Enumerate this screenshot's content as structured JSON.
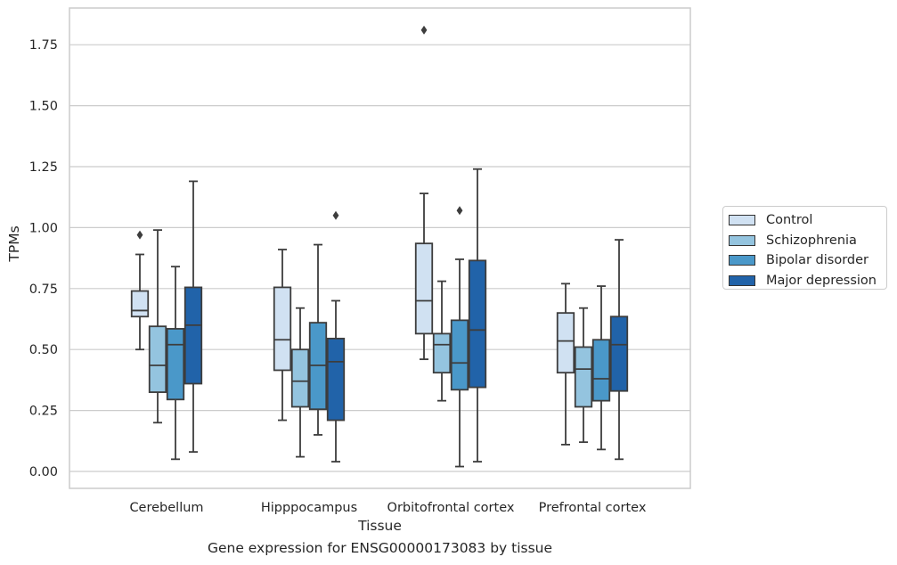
{
  "chart_data": {
    "type": "boxplot",
    "caption": "Gene expression for ENSG00000173083 by tissue",
    "xlabel": "Tissue",
    "ylabel": "TPMs",
    "ylim": [
      -0.07,
      1.92
    ],
    "yticks": [
      "0.00",
      "0.25",
      "0.50",
      "0.75",
      "1.00",
      "1.25",
      "1.50",
      "1.75"
    ],
    "ytick_values": [
      0,
      0.25,
      0.5,
      0.75,
      1.0,
      1.25,
      1.5,
      1.75
    ],
    "grid": true,
    "legend_position": "right",
    "categories": [
      "Cerebellum",
      "Hipppocampus",
      "Orbitofrontal cortex",
      "Prefrontal cortex"
    ],
    "series": [
      {
        "name": "Control",
        "color": "#d0e1f2",
        "boxes": [
          {
            "whislo": 0.5,
            "q1": 0.635,
            "med": 0.66,
            "q3": 0.74,
            "whishi": 0.89,
            "fliers": [
              0.97
            ]
          },
          {
            "whislo": 0.21,
            "q1": 0.415,
            "med": 0.54,
            "q3": 0.755,
            "whishi": 0.91,
            "fliers": []
          },
          {
            "whislo": 0.46,
            "q1": 0.565,
            "med": 0.7,
            "q3": 0.935,
            "whishi": 1.14,
            "fliers": [
              1.81
            ]
          },
          {
            "whislo": 0.11,
            "q1": 0.405,
            "med": 0.535,
            "q3": 0.65,
            "whishi": 0.77,
            "fliers": []
          }
        ]
      },
      {
        "name": "Schizophrenia",
        "color": "#94c4df",
        "boxes": [
          {
            "whislo": 0.2,
            "q1": 0.325,
            "med": 0.435,
            "q3": 0.595,
            "whishi": 0.99,
            "fliers": []
          },
          {
            "whislo": 0.06,
            "q1": 0.265,
            "med": 0.37,
            "q3": 0.5,
            "whishi": 0.67,
            "fliers": []
          },
          {
            "whislo": 0.29,
            "q1": 0.405,
            "med": 0.52,
            "q3": 0.565,
            "whishi": 0.78,
            "fliers": []
          },
          {
            "whislo": 0.12,
            "q1": 0.265,
            "med": 0.42,
            "q3": 0.51,
            "whishi": 0.67,
            "fliers": []
          }
        ]
      },
      {
        "name": "Bipolar disorder",
        "color": "#4a98c9",
        "boxes": [
          {
            "whislo": 0.05,
            "q1": 0.295,
            "med": 0.52,
            "q3": 0.585,
            "whishi": 0.84,
            "fliers": []
          },
          {
            "whislo": 0.15,
            "q1": 0.255,
            "med": 0.435,
            "q3": 0.61,
            "whishi": 0.93,
            "fliers": []
          },
          {
            "whislo": 0.02,
            "q1": 0.335,
            "med": 0.445,
            "q3": 0.62,
            "whishi": 0.87,
            "fliers": [
              1.07
            ]
          },
          {
            "whislo": 0.09,
            "q1": 0.29,
            "med": 0.38,
            "q3": 0.54,
            "whishi": 0.76,
            "fliers": []
          }
        ]
      },
      {
        "name": "Major depression",
        "color": "#2163a9",
        "boxes": [
          {
            "whislo": 0.08,
            "q1": 0.36,
            "med": 0.6,
            "q3": 0.755,
            "whishi": 1.19,
            "fliers": []
          },
          {
            "whislo": 0.04,
            "q1": 0.21,
            "med": 0.45,
            "q3": 0.545,
            "whishi": 0.7,
            "fliers": [
              1.05
            ]
          },
          {
            "whislo": 0.04,
            "q1": 0.345,
            "med": 0.58,
            "q3": 0.865,
            "whishi": 1.24,
            "fliers": []
          },
          {
            "whislo": 0.05,
            "q1": 0.33,
            "med": 0.52,
            "q3": 0.635,
            "whishi": 0.95,
            "fliers": []
          }
        ]
      }
    ]
  }
}
